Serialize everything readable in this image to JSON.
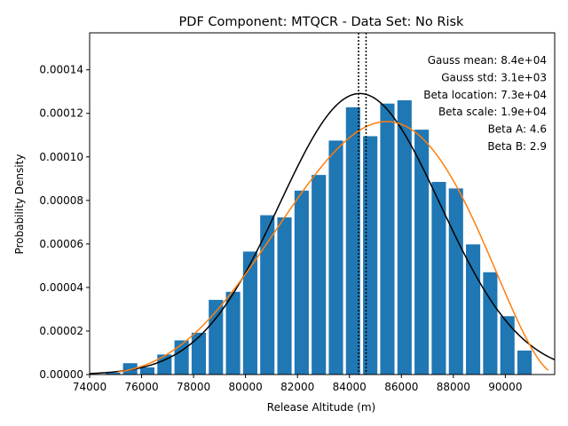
{
  "chart_data": {
    "type": "bar",
    "title": "PDF Component: MTQCR - Data Set: No Risk",
    "xlabel": "Release Altitude (m)",
    "ylabel": "Probability Density",
    "xlim": [
      74000,
      91900
    ],
    "ylim": [
      0,
      0.000157
    ],
    "xticks": [
      74000,
      76000,
      78000,
      80000,
      82000,
      84000,
      86000,
      88000,
      90000
    ],
    "xtick_labels": [
      "74000",
      "76000",
      "78000",
      "80000",
      "82000",
      "84000",
      "86000",
      "88000",
      "90000"
    ],
    "yticks": [
      0,
      2e-05,
      4e-05,
      6e-05,
      8e-05,
      0.0001,
      0.00012,
      0.00014
    ],
    "ytick_labels": [
      "0.00000",
      "0.00002",
      "0.00004",
      "0.00006",
      "0.00008",
      "0.00010",
      "0.00012",
      "0.00014"
    ],
    "bar_color": "#1f77b4",
    "bin_width": 660,
    "bar_width": 550,
    "bins": [
      {
        "x": 74900,
        "v": 8e-07
      },
      {
        "x": 75560,
        "v": 5.2e-06
      },
      {
        "x": 76220,
        "v": 3.3e-06
      },
      {
        "x": 76880,
        "v": 9.2e-06
      },
      {
        "x": 77540,
        "v": 1.57e-05
      },
      {
        "x": 78200,
        "v": 1.92e-05
      },
      {
        "x": 78860,
        "v": 3.43e-05
      },
      {
        "x": 79520,
        "v": 3.8e-05
      },
      {
        "x": 80180,
        "v": 5.65e-05
      },
      {
        "x": 80840,
        "v": 7.32e-05
      },
      {
        "x": 81500,
        "v": 7.22e-05
      },
      {
        "x": 82160,
        "v": 8.45e-05
      },
      {
        "x": 82820,
        "v": 9.17e-05
      },
      {
        "x": 83480,
        "v": 0.0001075
      },
      {
        "x": 84140,
        "v": 0.0001228
      },
      {
        "x": 84800,
        "v": 0.0001095
      },
      {
        "x": 85460,
        "v": 0.0001245
      },
      {
        "x": 86120,
        "v": 0.000126
      },
      {
        "x": 86780,
        "v": 0.0001125
      },
      {
        "x": 87440,
        "v": 8.85e-05
      },
      {
        "x": 88100,
        "v": 8.55e-05
      },
      {
        "x": 88760,
        "v": 5.98e-05
      },
      {
        "x": 89420,
        "v": 4.7e-05
      },
      {
        "x": 90080,
        "v": 2.68e-05
      },
      {
        "x": 90740,
        "v": 1.1e-05
      }
    ],
    "gauss": {
      "color": "#000000",
      "mean": 84400,
      "std": 3090,
      "x_range": [
        74000,
        91900
      ]
    },
    "beta": {
      "color": "#ff7f0e",
      "location": 73000,
      "scale": 19000,
      "a": 4.6,
      "b": 2.9,
      "x_range": [
        75100,
        91650
      ]
    },
    "vlines": [
      84350,
      84640
    ],
    "annotations": [
      "Gauss mean: 8.4e+04",
      "Gauss std: 3.1e+03",
      "Beta location: 7.3e+04",
      "Beta scale: 1.9e+04",
      "Beta A: 4.6",
      "Beta B: 2.9"
    ]
  }
}
